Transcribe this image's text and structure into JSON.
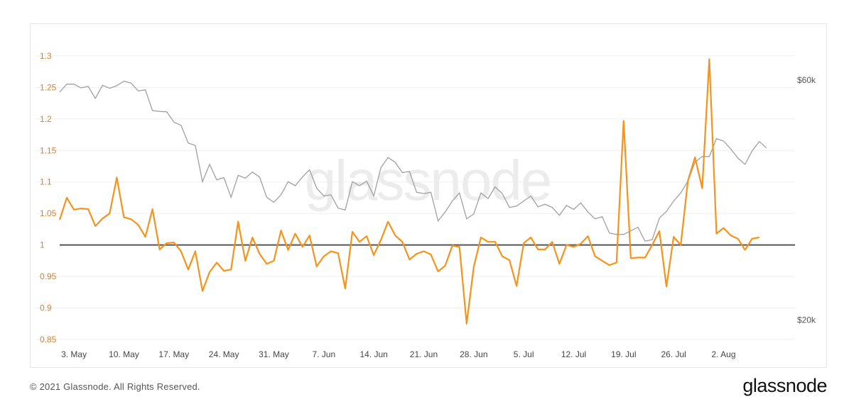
{
  "footer": {
    "copyright": "© 2021 Glassnode. All Rights Reserved.",
    "brand": "glassnode"
  },
  "watermark": "glassnode",
  "colors": {
    "ratio_line": "#f7931a",
    "price_line": "#a0a0a0",
    "baseline": "#555555",
    "grid": "#efefef",
    "left_ticks": "#d9822b",
    "right_ticks": "#555555",
    "x_ticks": "#444444",
    "watermark": "#ececec"
  },
  "chart_data": {
    "type": "line",
    "title": "",
    "grid": "horizontal",
    "x_tick_labels": [
      "3. May",
      "10. May",
      "17. May",
      "24. May",
      "31. May",
      "7. Jun",
      "14. Jun",
      "21. Jun",
      "28. Jun",
      "5. Jul",
      "12. Jul",
      "19. Jul",
      "26. Jul",
      "2. Aug"
    ],
    "x_tick_days": [
      2,
      9,
      16,
      23,
      30,
      37,
      44,
      51,
      58,
      65,
      72,
      79,
      86,
      93
    ],
    "x_start": "2021-04-30",
    "x_range_days": [
      0,
      103
    ],
    "y_left": {
      "ticks": [
        0.85,
        0.9,
        0.95,
        1,
        1.05,
        1.1,
        1.15,
        1.2,
        1.25,
        1.3
      ],
      "tick_labels": [
        "0.85",
        "0.9",
        "0.95",
        "1",
        "1.05",
        "1.1",
        "1.15",
        "1.2",
        "1.25",
        "1.3"
      ],
      "range": [
        0.85,
        1.31
      ]
    },
    "y_right": {
      "ticks": [
        20000,
        60000
      ],
      "tick_labels": [
        "$20k",
        "$60k"
      ],
      "scale": "log",
      "range": [
        18300,
        69000
      ]
    },
    "reference_line": 1,
    "series": [
      {
        "axis": "left",
        "color": "#f7931a",
        "values": [
          1.04,
          1.075,
          1.056,
          1.058,
          1.057,
          1.03,
          1.042,
          1.05,
          1.107,
          1.044,
          1.041,
          1.032,
          1.013,
          1.057,
          0.993,
          1.003,
          1.004,
          0.99,
          0.961,
          0.99,
          0.927,
          0.957,
          0.972,
          0.959,
          0.961,
          1.037,
          0.975,
          1.012,
          0.986,
          0.97,
          0.975,
          1.023,
          0.992,
          1.018,
          0.997,
          1.015,
          0.966,
          0.982,
          0.99,
          0.987,
          0.931,
          1.021,
          1.005,
          1.014,
          0.984,
          1.008,
          1.037,
          1.015,
          1.005,
          0.977,
          0.986,
          0.99,
          0.985,
          0.958,
          0.967,
          0.999,
          0.997,
          0.875,
          0.965,
          1.012,
          1.005,
          1.005,
          0.982,
          0.976,
          0.935,
          1.003,
          1.012,
          0.993,
          0.993,
          1.005,
          0.97,
          1.0,
          0.997,
          1.002,
          1.014,
          0.982,
          0.975,
          0.968,
          0.972,
          1.197,
          0.979,
          0.98,
          0.98,
          1.0,
          1.022,
          0.934,
          1.013,
          1.0,
          1.102,
          1.139,
          1.09,
          1.295,
          1.018,
          1.027,
          1.015,
          1.01,
          0.992,
          1.01,
          1.012
        ]
      },
      {
        "axis": "right",
        "color": "#a0a0a0",
        "values": [
          56800,
          58900,
          58900,
          57900,
          58300,
          55200,
          58600,
          57800,
          58500,
          59700,
          59200,
          57100,
          57400,
          52200,
          52000,
          51900,
          49500,
          48800,
          45000,
          44500,
          37700,
          40800,
          38000,
          38400,
          35100,
          38800,
          38300,
          39400,
          38500,
          35100,
          34300,
          35500,
          37700,
          37000,
          38500,
          39800,
          36600,
          35300,
          35500,
          33400,
          33100,
          37700,
          37000,
          37800,
          35300,
          40200,
          42100,
          41200,
          39300,
          39500,
          35900,
          35700,
          35900,
          31500,
          32800,
          34500,
          35800,
          31800,
          32500,
          35800,
          34900,
          36800,
          35700,
          33500,
          33700,
          34500,
          35300,
          33600,
          34000,
          33500,
          32300,
          33800,
          33200,
          34200,
          32800,
          31800,
          32100,
          29800,
          29600,
          29600,
          30100,
          30600,
          28700,
          28900,
          31900,
          32900,
          34500,
          35800,
          37800,
          41200,
          42300,
          42300,
          45900,
          45400,
          43800,
          42000,
          40800,
          43400,
          45300,
          44000
        ]
      }
    ]
  }
}
